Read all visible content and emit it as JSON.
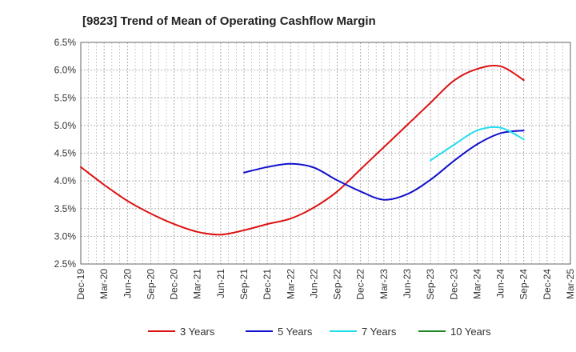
{
  "chart_data": {
    "type": "line",
    "title": "[9823]  Trend of Mean of Operating Cashflow Margin",
    "xlabel": "",
    "ylabel": "",
    "ylim": [
      2.5,
      6.5
    ],
    "y_ticks": [
      2.5,
      3.0,
      3.5,
      4.0,
      4.5,
      5.0,
      5.5,
      6.0,
      6.5
    ],
    "y_tick_labels": [
      "2.5%",
      "3.0%",
      "3.5%",
      "4.0%",
      "4.5%",
      "5.0%",
      "5.5%",
      "6.0%",
      "6.5%"
    ],
    "categories": [
      "Dec-19",
      "Mar-20",
      "Jun-20",
      "Sep-20",
      "Dec-20",
      "Mar-21",
      "Jun-21",
      "Sep-21",
      "Dec-21",
      "Mar-22",
      "Jun-22",
      "Sep-22",
      "Dec-22",
      "Mar-23",
      "Jun-23",
      "Sep-23",
      "Dec-23",
      "Mar-24",
      "Jun-24",
      "Sep-24",
      "Dec-24",
      "Mar-25"
    ],
    "grid": true,
    "legend_position": "bottom",
    "series": [
      {
        "name": "3 Years",
        "color": "#dd1111",
        "values": [
          4.25,
          3.93,
          3.64,
          3.41,
          3.22,
          3.08,
          3.03,
          3.11,
          3.22,
          3.32,
          3.52,
          3.81,
          4.21,
          4.61,
          5.01,
          5.41,
          5.81,
          6.02,
          6.07,
          5.82,
          null,
          null
        ]
      },
      {
        "name": "5 Years",
        "color": "#1111cc",
        "values": [
          null,
          null,
          null,
          null,
          null,
          null,
          null,
          4.15,
          4.25,
          4.31,
          4.24,
          4.01,
          3.81,
          3.66,
          3.76,
          4.02,
          4.36,
          4.66,
          4.86,
          4.91,
          null,
          null
        ]
      },
      {
        "name": "7 Years",
        "color": "#22ddee",
        "values": [
          null,
          null,
          null,
          null,
          null,
          null,
          null,
          null,
          null,
          null,
          null,
          null,
          null,
          null,
          null,
          4.37,
          4.65,
          4.91,
          4.96,
          4.75,
          null,
          null
        ]
      },
      {
        "name": "10 Years",
        "color": "#228822",
        "values": [
          null,
          null,
          null,
          null,
          null,
          null,
          null,
          null,
          null,
          null,
          null,
          null,
          null,
          null,
          null,
          null,
          null,
          null,
          null,
          null,
          null,
          null
        ]
      }
    ]
  }
}
